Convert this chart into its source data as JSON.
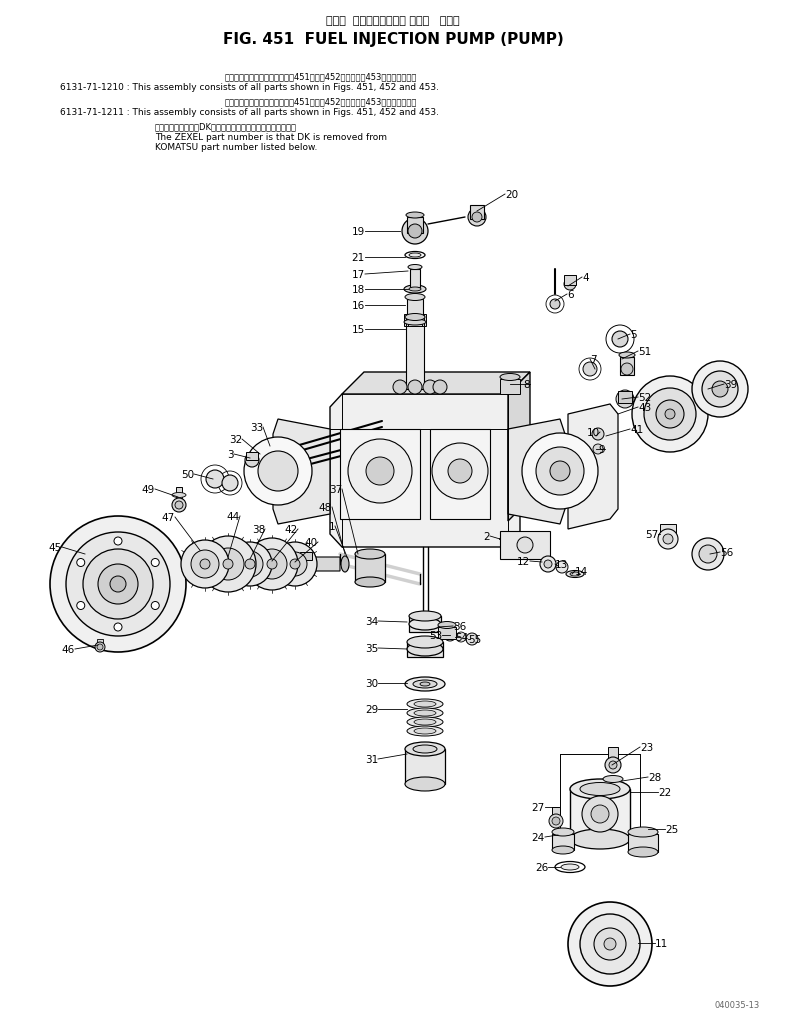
{
  "title_japanese": "フェル  インジェクション ポンプ   ポンプ",
  "title_english": "FIG. 451  FUEL INJECTION PUMP (PUMP)",
  "bg_color": "#ffffff",
  "text_color": "#000000",
  "line_color": "#000000",
  "watermark": "040035-13",
  "line1_jp": "このアセンブリの構成部品は第451図、第452図および第453図を含みます。",
  "line1_en": "6131-71-1210 : This assembly consists of all parts shown in Figs. 451, 452 and 453.",
  "line2_jp": "このアセンブリの構成部品は第451図、第452図および第453図を含みます。",
  "line2_en": "6131-71-1211 : This assembly consists of all parts shown in Figs. 451, 452 and 453.",
  "line3_jp": "品番のメーカー記号DKを除いたものがゼクセルの品番です。",
  "line3_en1": "The ZEXEL part number is that DK is removed from",
  "line3_en2": "KOMATSU part number listed below."
}
